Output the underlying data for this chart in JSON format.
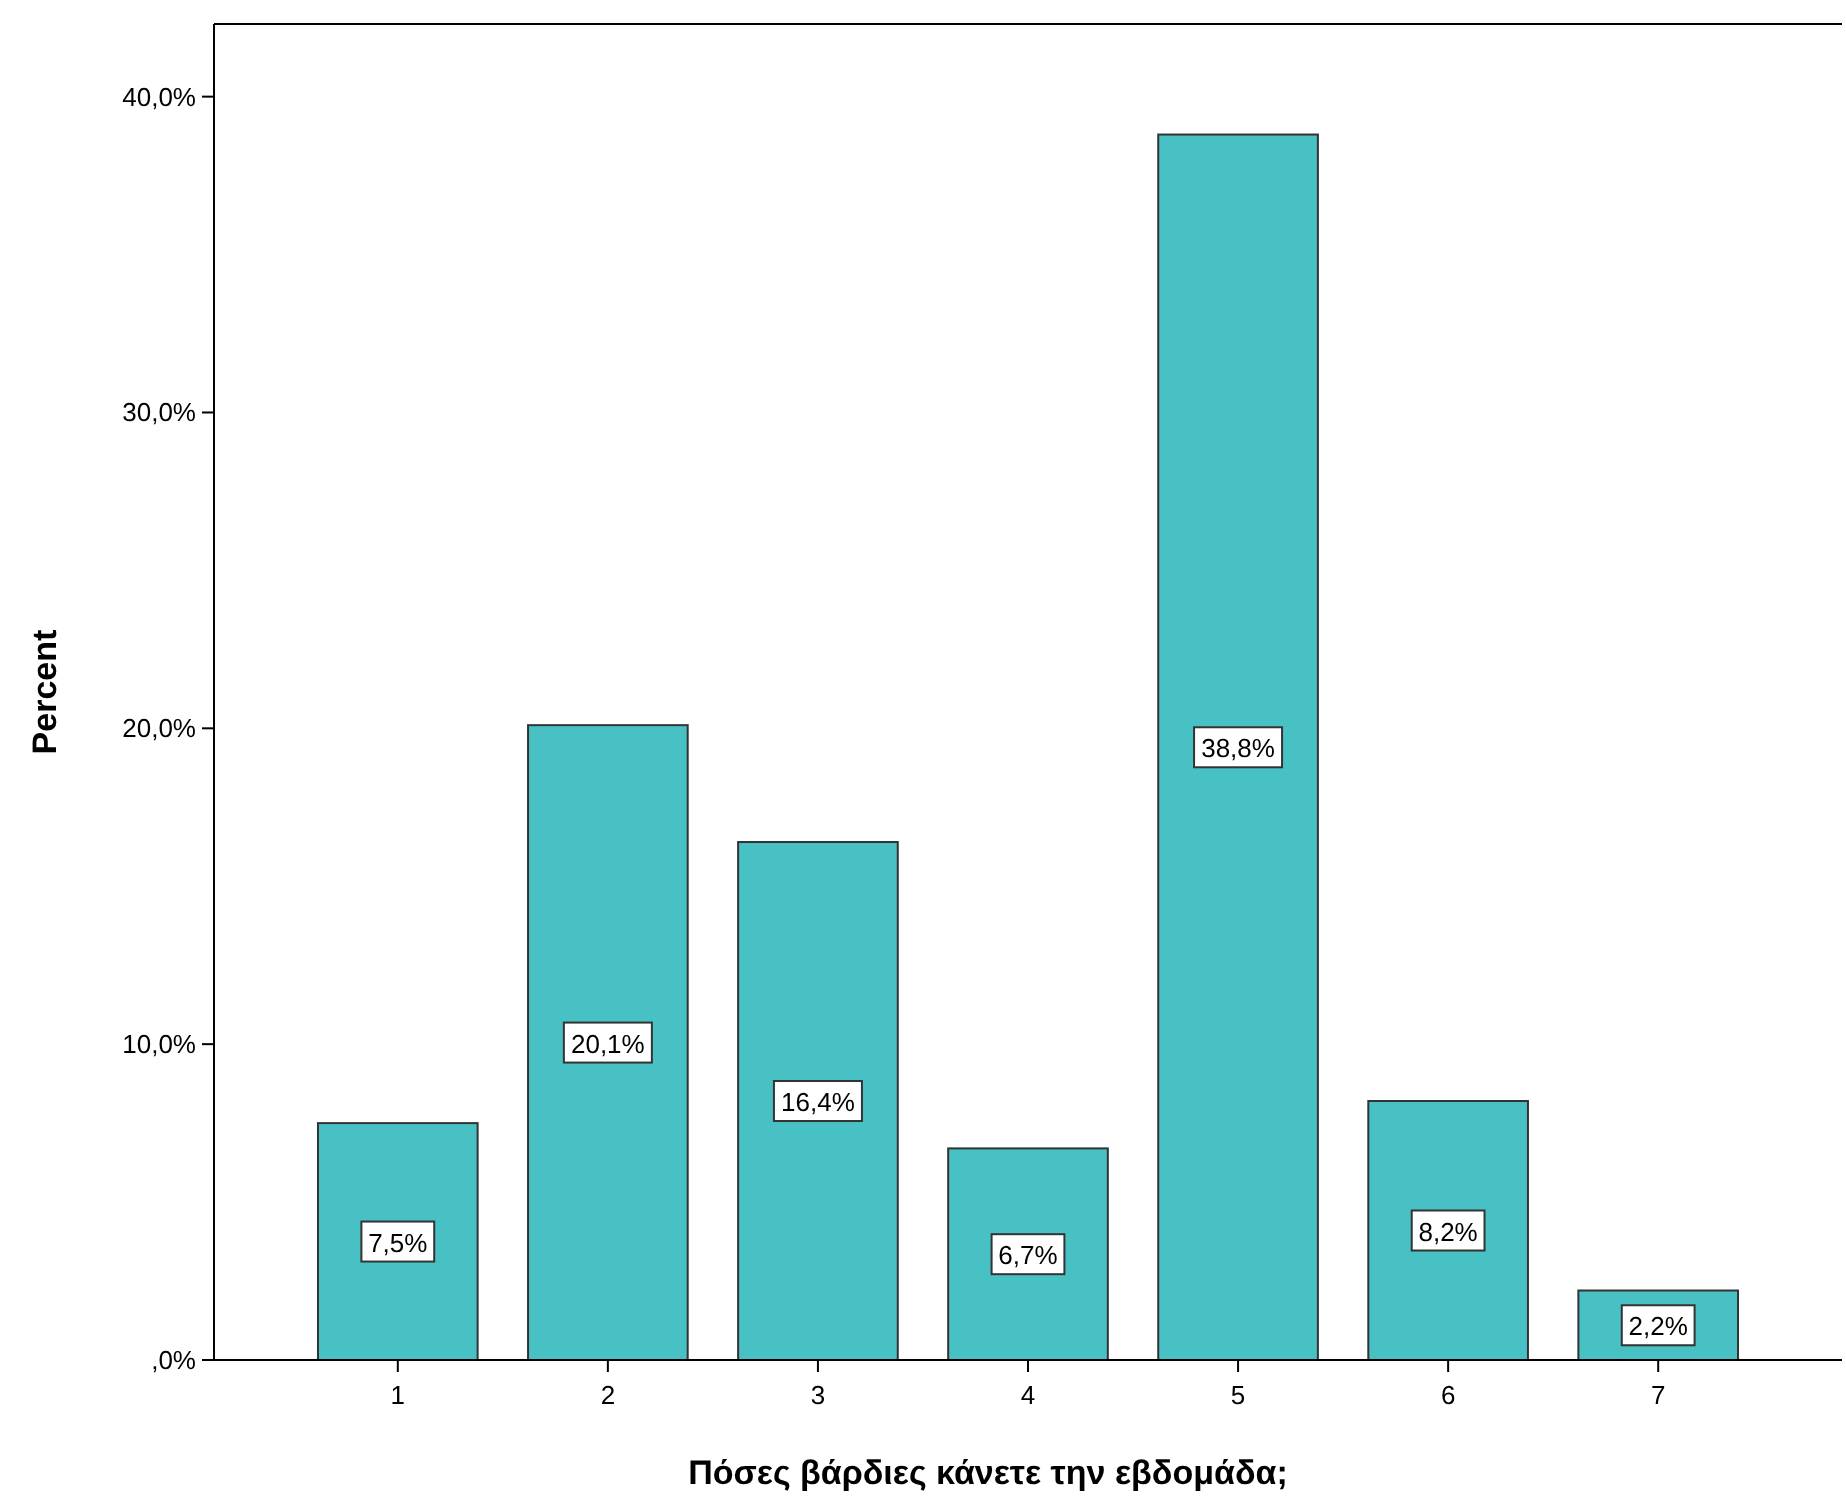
{
  "chart_data": {
    "type": "bar",
    "xlabel": "Πόσες βάρδιες κάνετε την εβδομάδα;",
    "ylabel": "Percent",
    "categories": [
      "1",
      "2",
      "3",
      "4",
      "5",
      "6",
      "7"
    ],
    "values": [
      7.5,
      20.1,
      16.4,
      6.7,
      38.8,
      8.2,
      2.2
    ],
    "value_labels": [
      "7,5%",
      "20,1%",
      "16,4%",
      "6,7%",
      "38,8%",
      "8,2%",
      "2,2%"
    ],
    "color": "#48c1c4",
    "ylim": [
      0,
      42.3
    ],
    "yticks": [
      {
        "value": 0,
        "label": ",0%"
      },
      {
        "value": 10,
        "label": "10,0%"
      },
      {
        "value": 20,
        "label": "20,0%"
      },
      {
        "value": 30,
        "label": "30,0%"
      },
      {
        "value": 40,
        "label": "40,0%"
      }
    ],
    "grid": false
  }
}
